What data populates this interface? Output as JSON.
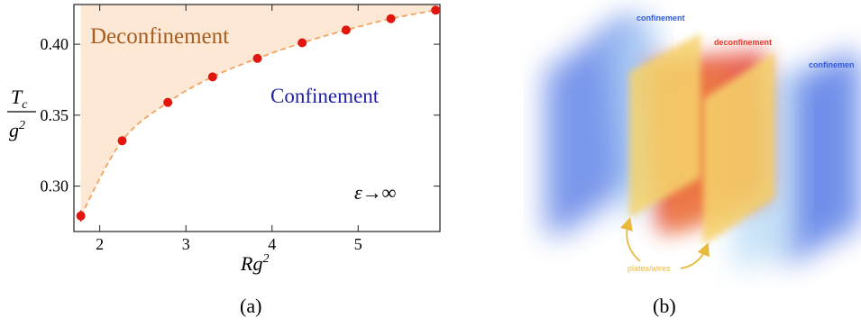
{
  "panel_a": {
    "caption": "(a)",
    "region_labels": {
      "upper": "Deconfinement",
      "lower": "Confinement"
    },
    "limit_label": "ε→∞",
    "colors": {
      "fill": "#fde8d6",
      "fit": "#f2a45e",
      "points": "#e3160f",
      "upper_label": "#a65d1e",
      "lower_label": "#1f1fa8"
    }
  },
  "panel_b": {
    "caption": "(b)",
    "labels": {
      "left": "confinement",
      "center": "deconfinement",
      "right": "confinemen",
      "plates": "plates/wires"
    },
    "colors": {
      "confinement": "#2f5be0",
      "deconfinement": "#e23a2a",
      "plates": "#f0c84a",
      "plates_label": "#e8b93a"
    }
  },
  "chart_data": {
    "type": "scatter",
    "xlabel": "Rg²",
    "ylabel": "Tc/g²",
    "xlim": [
      1.7,
      5.95
    ],
    "ylim": [
      0.268,
      0.428
    ],
    "x_ticks": [
      2,
      3,
      4,
      5
    ],
    "y_ticks": [
      0.3,
      0.35,
      0.4
    ],
    "x_tick_labels": [
      "2",
      "3",
      "4",
      "5"
    ],
    "y_tick_labels": [
      "0.30",
      "0.35",
      "0.40"
    ],
    "series": [
      {
        "x": [
          1.78,
          2.26,
          2.79,
          3.31,
          3.83,
          4.35,
          4.86,
          5.38,
          5.9
        ],
        "y": [
          0.279,
          0.332,
          0.359,
          0.377,
          0.39,
          0.401,
          0.41,
          0.418,
          0.424
        ],
        "errors": [
          0.004,
          0.0,
          0.0,
          0.0,
          0.0,
          0.0,
          0.0,
          0.0,
          0.0
        ]
      }
    ],
    "grid": false
  }
}
